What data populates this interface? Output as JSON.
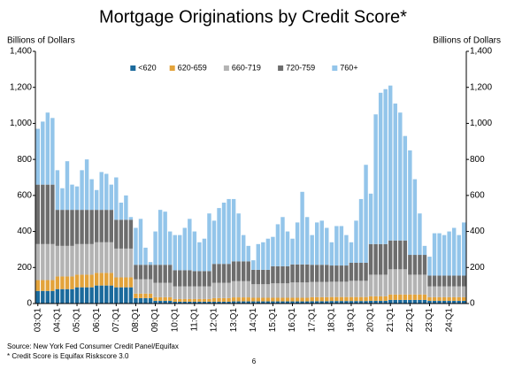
{
  "chart_data": {
    "type": "stacked_bar",
    "title": "Mortgage Originations by Credit Score*",
    "y_axis_label": "Billions of Dollars",
    "y2_axis_label": "Billions of Dollars",
    "categories": [
      "03:Q1",
      null,
      null,
      null,
      "04:Q1",
      null,
      null,
      null,
      "05:Q1",
      null,
      null,
      null,
      "06:Q1",
      null,
      null,
      null,
      "07:Q1",
      null,
      null,
      null,
      "08:Q1",
      null,
      null,
      null,
      "09:Q1",
      null,
      null,
      null,
      "10:Q1",
      null,
      null,
      null,
      "11:Q1",
      null,
      null,
      null,
      "12:Q1",
      null,
      null,
      null,
      "13:Q1",
      null,
      null,
      null,
      "14:Q1",
      null,
      null,
      null,
      "15:Q1",
      null,
      null,
      null,
      "16:Q1",
      null,
      null,
      null,
      "17:Q1",
      null,
      null,
      null,
      "18:Q1",
      null,
      null,
      null,
      "19:Q1",
      null,
      null,
      null,
      "20:Q1",
      null,
      null,
      null,
      "21:Q1",
      null,
      null,
      null,
      "22:Q1",
      null,
      null,
      null,
      "23:Q1",
      null,
      null,
      null,
      "24:Q1",
      null,
      null,
      null
    ],
    "series": [
      {
        "name": "<620",
        "color": "#1b6a9c",
        "values": [
          70,
          70,
          70,
          70,
          80,
          80,
          80,
          80,
          90,
          90,
          90,
          90,
          100,
          100,
          100,
          100,
          90,
          90,
          90,
          90,
          30,
          30,
          30,
          30,
          15,
          15,
          15,
          15,
          10,
          10,
          10,
          10,
          10,
          10,
          10,
          10,
          10,
          10,
          10,
          10,
          12,
          12,
          12,
          12,
          12,
          12,
          12,
          12,
          12,
          12,
          12,
          12,
          12,
          12,
          12,
          12,
          13,
          13,
          13,
          13,
          14,
          14,
          14,
          14,
          14,
          14,
          14,
          14,
          15,
          15,
          15,
          15,
          20,
          20,
          20,
          20,
          20,
          20,
          20,
          20,
          15,
          15,
          15,
          15,
          15,
          15,
          15,
          15
        ]
      },
      {
        "name": "620-659",
        "color": "#e3a33b",
        "values": [
          60,
          60,
          60,
          60,
          70,
          70,
          70,
          70,
          70,
          70,
          70,
          70,
          70,
          70,
          70,
          70,
          55,
          55,
          55,
          55,
          25,
          25,
          25,
          25,
          20,
          20,
          20,
          20,
          15,
          15,
          15,
          15,
          15,
          15,
          15,
          15,
          20,
          20,
          20,
          20,
          22,
          22,
          22,
          22,
          20,
          20,
          20,
          20,
          20,
          20,
          20,
          20,
          20,
          20,
          20,
          20,
          22,
          22,
          22,
          22,
          22,
          22,
          22,
          22,
          22,
          22,
          22,
          22,
          25,
          25,
          25,
          25,
          30,
          30,
          30,
          30,
          30,
          30,
          30,
          30,
          20,
          20,
          20,
          20,
          20,
          20,
          20,
          20
        ]
      },
      {
        "name": "660-719",
        "color": "#b3b3b3",
        "values": [
          200,
          200,
          200,
          200,
          170,
          170,
          170,
          170,
          170,
          170,
          170,
          170,
          170,
          170,
          170,
          170,
          160,
          160,
          160,
          160,
          80,
          80,
          80,
          80,
          80,
          80,
          80,
          80,
          70,
          70,
          70,
          70,
          70,
          70,
          70,
          70,
          85,
          85,
          85,
          85,
          90,
          90,
          90,
          90,
          75,
          75,
          75,
          75,
          80,
          80,
          80,
          80,
          85,
          85,
          85,
          85,
          85,
          85,
          85,
          85,
          85,
          85,
          85,
          85,
          90,
          90,
          90,
          90,
          120,
          120,
          120,
          120,
          140,
          140,
          140,
          140,
          110,
          110,
          110,
          110,
          60,
          60,
          60,
          60,
          60,
          60,
          60,
          60
        ]
      },
      {
        "name": "720-759",
        "color": "#6d6d6d",
        "values": [
          330,
          330,
          330,
          330,
          200,
          200,
          200,
          200,
          190,
          190,
          190,
          190,
          180,
          180,
          180,
          180,
          160,
          160,
          160,
          160,
          80,
          80,
          80,
          80,
          100,
          100,
          100,
          100,
          90,
          90,
          90,
          90,
          85,
          85,
          85,
          85,
          105,
          105,
          105,
          105,
          110,
          110,
          110,
          110,
          80,
          80,
          80,
          80,
          95,
          95,
          95,
          95,
          100,
          100,
          100,
          100,
          95,
          95,
          95,
          95,
          90,
          90,
          90,
          90,
          100,
          100,
          100,
          100,
          170,
          170,
          170,
          170,
          160,
          160,
          160,
          160,
          110,
          110,
          110,
          110,
          60,
          60,
          60,
          60,
          60,
          60,
          60,
          60
        ]
      },
      {
        "name": "760+",
        "color": "#93c5ea",
        "values": [
          310,
          350,
          400,
          370,
          220,
          120,
          270,
          140,
          130,
          220,
          280,
          170,
          110,
          210,
          200,
          140,
          235,
          95,
          135,
          15,
          205,
          255,
          95,
          15,
          185,
          305,
          295,
          185,
          195,
          195,
          235,
          285,
          220,
          160,
          180,
          320,
          240,
          310,
          340,
          360,
          346,
          266,
          146,
          86,
          53,
          143,
          153,
          173,
          163,
          233,
          273,
          193,
          143,
          233,
          403,
          263,
          165,
          235,
          245,
          205,
          129,
          219,
          219,
          169,
          114,
          234,
          354,
          544,
          280,
          720,
          840,
          860,
          860,
          760,
          710,
          580,
          580,
          420,
          230,
          50,
          105,
          235,
          235,
          225,
          245,
          265,
          225,
          295
        ]
      }
    ],
    "ylim": [
      0,
      1400
    ],
    "yticks": [
      0,
      200,
      400,
      600,
      800,
      {
        "value": 1000,
        "label": "1,000"
      },
      {
        "value": 1200,
        "label": "1,200"
      },
      {
        "value": 1400,
        "label": "1,400"
      }
    ],
    "y2lim": [
      0,
      1400
    ],
    "y2ticks": [
      0,
      200,
      400,
      600,
      800,
      {
        "value": 1000,
        "label": "1,000"
      },
      {
        "value": 1200,
        "label": "1,200"
      },
      {
        "value": 1400,
        "label": "1,400"
      }
    ],
    "grid": false,
    "legend": "top",
    "notes": [
      "Source: New York Fed Consumer Credit Panel/Equifax",
      "* Credit Score is Equifax Riskscore 3.0"
    ],
    "page_number": "6"
  }
}
